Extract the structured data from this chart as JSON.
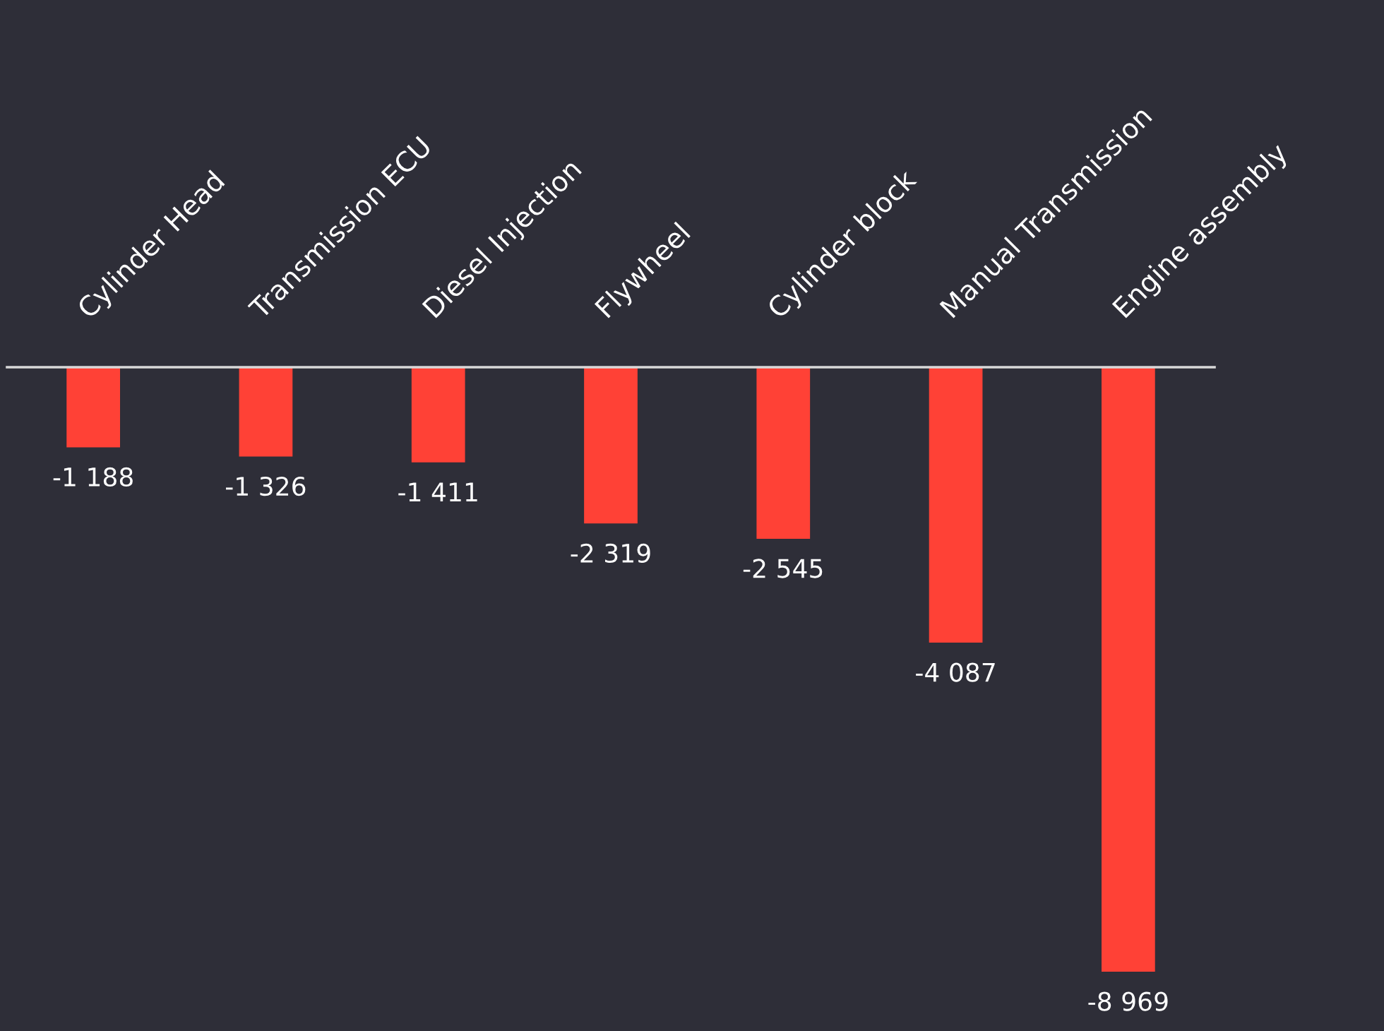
{
  "chart_data": {
    "type": "bar",
    "categories": [
      "Cylinder Head",
      "Transmission ECU",
      "Diesel Injection",
      "Flywheel",
      "Cylinder block",
      "Manual Transmission",
      "Engine assembly"
    ],
    "values": [
      -1188,
      -1326,
      -1411,
      -2319,
      -2545,
      -4087,
      -8969
    ],
    "value_labels": [
      "-1 188",
      "-1 326",
      "-1 411",
      "-2 319",
      "-2 545",
      "-4 087",
      "-8 969"
    ],
    "color": "#ff4136",
    "grid": false,
    "legend": false
  }
}
